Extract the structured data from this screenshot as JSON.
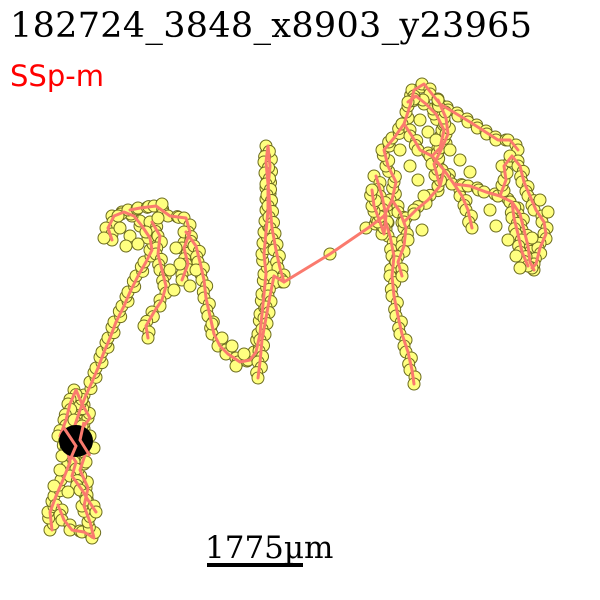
{
  "figure": {
    "title": "182724_3848_x8903_y23965",
    "region": "SSp-m",
    "scale_label": "1775µm"
  },
  "colors": {
    "region_label": "#ff0000",
    "trace_line": "#fa7a6e",
    "node_fill": "#ffff80",
    "node_stroke": "#6b6b1e",
    "soma": "#000000",
    "background": "#ffffff"
  }
}
